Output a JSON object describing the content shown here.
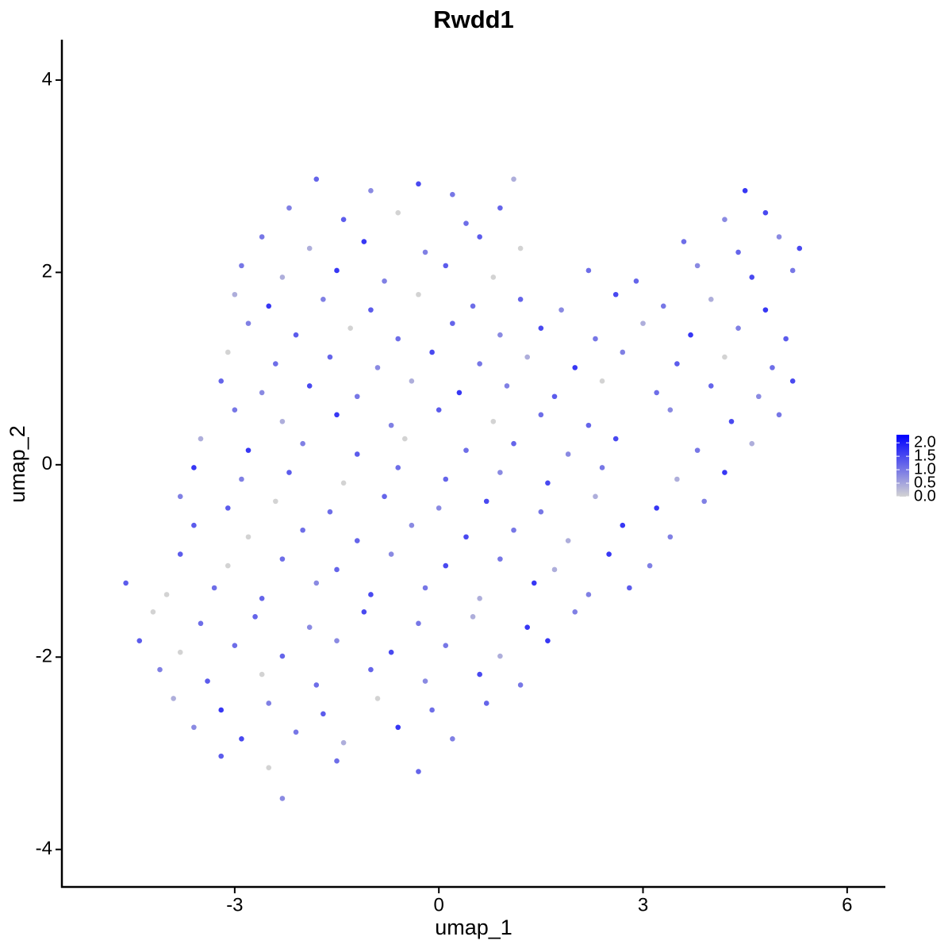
{
  "chart_data": {
    "type": "scatter",
    "title": "Rwdd1",
    "x_label": "umap_1",
    "y_label": "umap_2",
    "xlim": [
      -5.54,
      6.55
    ],
    "ylim": [
      -4.39,
      4.42
    ],
    "xticks": [
      -3,
      0,
      3,
      6
    ],
    "yticks": [
      -4,
      -2,
      0,
      2,
      4
    ],
    "low_color": "#d3d3d3",
    "high_color": "#0000ff",
    "colorlim": [
      0,
      2.3
    ],
    "colorticks": [
      {
        "value": 0,
        "label": "0.0"
      },
      0.5,
      {
        "value": 1,
        "label": "1.0"
      },
      1.5,
      {
        "value": 2,
        "label": "2.0"
      }
    ],
    "x": [
      -1.8,
      -1.0,
      -0.3,
      0.2,
      1.1,
      4.5,
      -2.2,
      -1.4,
      -0.6,
      0.4,
      0.9,
      4.2,
      4.8,
      -2.6,
      -1.9,
      -1.1,
      -0.2,
      0.6,
      1.2,
      3.6,
      4.4,
      5.0,
      5.3,
      -2.9,
      -2.3,
      -1.5,
      -0.8,
      0.1,
      0.8,
      2.2,
      2.9,
      3.8,
      4.6,
      5.2,
      -3.0,
      -2.5,
      -1.7,
      -1.0,
      -0.3,
      0.5,
      1.2,
      1.8,
      2.6,
      3.3,
      4.0,
      4.8,
      -2.8,
      -2.1,
      -1.3,
      -0.6,
      0.2,
      0.9,
      1.5,
      2.3,
      3.0,
      3.7,
      4.4,
      5.1,
      -3.1,
      -2.4,
      -1.6,
      -0.9,
      -0.1,
      0.6,
      1.3,
      2.0,
      2.7,
      3.5,
      4.2,
      4.9,
      -3.2,
      -2.6,
      -1.9,
      -1.2,
      -0.4,
      0.3,
      1.0,
      1.7,
      2.4,
      3.2,
      4.0,
      4.7,
      5.2,
      -3.0,
      -2.3,
      -1.5,
      -0.7,
      0.0,
      0.8,
      1.5,
      2.2,
      3.4,
      4.3,
      5.0,
      -3.5,
      -2.8,
      -2.0,
      -1.2,
      -0.5,
      0.4,
      1.1,
      1.9,
      2.6,
      3.8,
      4.6,
      -3.6,
      -2.9,
      -2.2,
      -1.4,
      -0.6,
      0.1,
      0.9,
      1.6,
      2.4,
      3.5,
      4.2,
      -3.8,
      -3.1,
      -2.4,
      -1.6,
      -0.8,
      0.0,
      0.7,
      1.5,
      2.3,
      3.2,
      3.9,
      -3.6,
      -2.8,
      -2.0,
      -1.2,
      -0.4,
      0.4,
      1.1,
      1.9,
      2.7,
      3.4,
      -3.8,
      -3.1,
      -2.3,
      -1.5,
      -0.7,
      0.1,
      0.9,
      1.7,
      2.5,
      3.1,
      -4.6,
      -4.0,
      -3.3,
      -2.6,
      -1.8,
      -1.0,
      -0.2,
      0.6,
      1.4,
      2.2,
      2.8,
      -4.2,
      -3.5,
      -2.7,
      -1.9,
      -1.1,
      -0.3,
      0.5,
      1.3,
      2.0,
      -4.4,
      -3.8,
      -3.0,
      -2.3,
      -1.5,
      -0.7,
      0.1,
      0.9,
      1.6,
      -4.1,
      -3.4,
      -2.6,
      -1.8,
      -1.0,
      -0.2,
      0.6,
      1.2,
      -3.9,
      -3.2,
      -2.5,
      -1.7,
      -0.9,
      -0.1,
      0.7,
      -3.6,
      -2.9,
      -2.1,
      -1.4,
      -0.6,
      0.2,
      -3.2,
      -2.5,
      -1.5,
      -0.3,
      -2.3
    ],
    "values": [
      2.97,
      2.85,
      2.92,
      2.81,
      2.97,
      2.85,
      2.67,
      2.55,
      2.62,
      2.51,
      2.67,
      2.55,
      2.62,
      2.37,
      2.25,
      2.32,
      2.21,
      2.37,
      2.25,
      2.32,
      2.21,
      2.37,
      2.25,
      2.07,
      1.95,
      2.02,
      1.91,
      2.07,
      1.95,
      2.02,
      1.91,
      2.07,
      1.95,
      2.02,
      1.77,
      1.65,
      1.72,
      1.61,
      1.77,
      1.65,
      1.72,
      1.61,
      1.77,
      1.65,
      1.72,
      1.61,
      1.47,
      1.35,
      1.42,
      1.31,
      1.47,
      1.35,
      1.42,
      1.31,
      1.47,
      1.35,
      1.42,
      1.31,
      1.17,
      1.05,
      1.12,
      1.01,
      1.17,
      1.05,
      1.12,
      1.01,
      1.17,
      1.05,
      1.12,
      1.01,
      0.87,
      0.75,
      0.82,
      0.71,
      0.87,
      0.75,
      0.82,
      0.71,
      0.87,
      0.75,
      0.82,
      0.71,
      0.87,
      0.57,
      0.45,
      0.52,
      0.41,
      0.57,
      0.45,
      0.52,
      0.41,
      0.57,
      0.45,
      0.52,
      0.27,
      0.15,
      0.22,
      0.11,
      0.27,
      0.15,
      0.22,
      0.11,
      0.27,
      0.15,
      0.22,
      -0.03,
      -0.15,
      -0.08,
      -0.19,
      -0.03,
      -0.15,
      -0.08,
      -0.19,
      -0.03,
      -0.15,
      -0.08,
      -0.33,
      -0.45,
      -0.38,
      -0.49,
      -0.33,
      -0.45,
      -0.38,
      -0.49,
      -0.33,
      -0.45,
      -0.38,
      -0.63,
      -0.75,
      -0.68,
      -0.79,
      -0.63,
      -0.75,
      -0.68,
      -0.79,
      -0.63,
      -0.75,
      -0.93,
      -1.05,
      -0.98,
      -1.09,
      -0.93,
      -1.05,
      -0.98,
      -1.09,
      -0.93,
      -1.05,
      -1.23,
      -1.35,
      -1.28,
      -1.39,
      -1.23,
      -1.35,
      -1.28,
      -1.39,
      -1.23,
      -1.35,
      -1.28,
      -1.53,
      -1.65,
      -1.58,
      -1.69,
      -1.53,
      -1.65,
      -1.58,
      -1.69,
      -1.53,
      -1.83,
      -1.95,
      -1.88,
      -1.99,
      -1.83,
      -1.95,
      -1.88,
      -1.99,
      -1.83,
      -2.13,
      -2.25,
      -2.18,
      -2.29,
      -2.13,
      -2.25,
      -2.18,
      -2.29,
      -2.43,
      -2.55,
      -2.48,
      -2.59,
      -2.43,
      -2.55,
      -2.48,
      -2.73,
      -2.85,
      -2.78,
      -2.89,
      -2.73,
      -2.85,
      -3.03,
      -3.15,
      -3.08,
      -3.19,
      -3.47
    ],
    "expression": [
      1.2,
      0.8,
      1.5,
      1.0,
      0.4,
      1.7,
      0.9,
      1.3,
      0,
      1.1,
      1.2,
      0.8,
      1.5,
      1.0,
      0.4,
      1.7,
      0.9,
      1.3,
      0,
      1.1,
      1.2,
      0.8,
      1.5,
      1.0,
      0.4,
      1.7,
      0.9,
      1.3,
      0,
      1.1,
      1.2,
      0.8,
      1.5,
      1.0,
      0.4,
      1.7,
      0.9,
      1.3,
      0,
      1.1,
      1.2,
      0.8,
      1.5,
      1.0,
      0.4,
      1.7,
      0.9,
      1.3,
      0,
      1.1,
      1.2,
      0.8,
      1.5,
      1.0,
      0.4,
      1.7,
      0.9,
      1.3,
      0,
      1.1,
      1.2,
      0.8,
      1.5,
      1.0,
      0.4,
      1.7,
      0.9,
      1.3,
      0,
      1.1,
      1.2,
      0.8,
      1.5,
      1.0,
      0.4,
      1.7,
      0.9,
      1.3,
      0,
      1.1,
      1.2,
      0.8,
      1.5,
      1.0,
      0.4,
      1.7,
      0.9,
      1.3,
      0,
      1.1,
      1.2,
      0.8,
      1.5,
      1.0,
      0.4,
      1.7,
      0.9,
      1.3,
      0,
      1.1,
      1.2,
      0.8,
      1.5,
      1.0,
      0.4,
      1.7,
      0.9,
      1.3,
      0,
      1.1,
      1.2,
      0.8,
      1.5,
      1.0,
      0.4,
      1.7,
      0.9,
      1.3,
      0,
      1.1,
      1.2,
      0.8,
      1.5,
      1.0,
      0.4,
      1.7,
      0.9,
      1.3,
      0,
      1.1,
      1.2,
      0.8,
      1.5,
      1.0,
      0.4,
      1.7,
      0.9,
      1.3,
      0,
      1.1,
      1.2,
      0.8,
      1.5,
      1.0,
      0.4,
      1.7,
      0.9,
      1.3,
      0,
      1.1,
      1.2,
      0.8,
      1.5,
      1.0,
      0.4,
      1.7,
      0.9,
      1.3,
      0,
      1.1,
      1.2,
      0.8,
      1.5,
      1.0,
      0.4,
      1.7,
      0.9,
      1.3,
      0,
      1.1,
      1.2,
      0.8,
      1.5,
      1.0,
      0.4,
      1.7,
      0.9,
      1.3,
      0,
      1.1,
      1.2,
      0.8,
      1.5,
      1.0,
      0.4,
      1.7,
      0.9,
      1.3,
      0,
      1.1,
      1.2,
      0.8,
      1.5,
      1.0,
      0.4,
      1.7,
      0.9,
      1.3,
      0,
      1.1,
      1.2,
      0.8
    ]
  }
}
